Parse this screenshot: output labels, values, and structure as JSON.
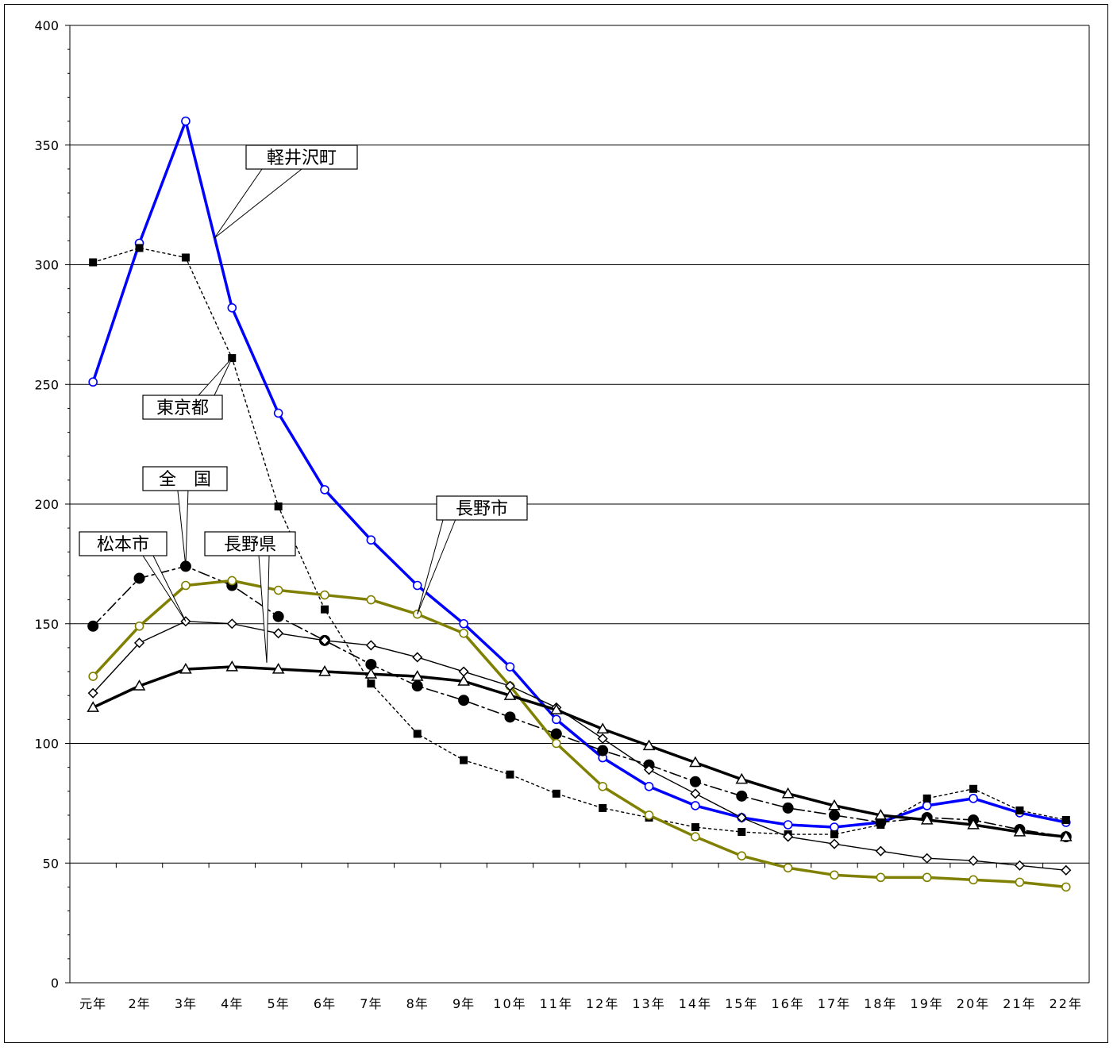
{
  "chart_data": {
    "type": "line",
    "title": "",
    "xlabel": "",
    "ylabel": "",
    "ylim": [
      0,
      400
    ],
    "y_ticks": [
      0,
      50,
      100,
      150,
      200,
      250,
      300,
      350,
      400
    ],
    "grid": true,
    "categories": [
      "元年",
      "2年",
      "3年",
      "4年",
      "5年",
      "6年",
      "7年",
      "8年",
      "9年",
      "10年",
      "11年",
      "12年",
      "13年",
      "14年",
      "15年",
      "16年",
      "17年",
      "18年",
      "19年",
      "20年",
      "21年",
      "22年"
    ],
    "series": [
      {
        "name": "軽井沢町",
        "color": "#0000ff",
        "line_style": "solid-thick",
        "marker": "open-circle",
        "values": [
          251,
          309,
          360,
          282,
          238,
          206,
          185,
          166,
          150,
          132,
          110,
          94,
          82,
          74,
          69,
          66,
          65,
          67,
          74,
          77,
          71,
          67
        ]
      },
      {
        "name": "東京都",
        "color": "#000000",
        "line_style": "dotted",
        "marker": "filled-square",
        "values": [
          301,
          307,
          303,
          261,
          199,
          156,
          125,
          104,
          93,
          87,
          79,
          73,
          69,
          65,
          63,
          62,
          62,
          66,
          77,
          81,
          72,
          68
        ]
      },
      {
        "name": "全　国",
        "color": "#000000",
        "line_style": "dash-dot",
        "marker": "filled-circle",
        "values": [
          149,
          169,
          174,
          166,
          153,
          143,
          133,
          124,
          118,
          111,
          104,
          97,
          91,
          84,
          78,
          73,
          70,
          67,
          69,
          68,
          64,
          61
        ]
      },
      {
        "name": "長野市",
        "color": "#808000",
        "line_style": "solid-thick",
        "marker": "open-circle",
        "values": [
          128,
          149,
          166,
          168,
          164,
          162,
          160,
          154,
          146,
          124,
          100,
          82,
          70,
          61,
          53,
          48,
          45,
          44,
          44,
          43,
          42,
          40
        ]
      },
      {
        "name": "松本市",
        "color": "#000000",
        "line_style": "solid",
        "marker": "open-diamond",
        "values": [
          121,
          142,
          151,
          150,
          146,
          143,
          141,
          136,
          130,
          124,
          115,
          102,
          89,
          79,
          69,
          61,
          58,
          55,
          52,
          51,
          49,
          47
        ]
      },
      {
        "name": "長野県",
        "color": "#000000",
        "line_style": "solid-thick",
        "marker": "open-triangle",
        "values": [
          115,
          124,
          131,
          132,
          131,
          130,
          129,
          128,
          126,
          120,
          114,
          106,
          99,
          92,
          85,
          79,
          74,
          70,
          68,
          66,
          63,
          61
        ]
      }
    ],
    "annotations": [
      {
        "text": "軽井沢町",
        "series": 0,
        "points": [
          3,
          4
        ]
      },
      {
        "text": "東京都",
        "series": 1,
        "points": [
          3,
          3
        ]
      },
      {
        "text": "全　国",
        "series": 2,
        "points": [
          2,
          2
        ]
      },
      {
        "text": "松本市",
        "series": 4,
        "points": [
          2,
          2
        ]
      },
      {
        "text": "長野県",
        "series": 5,
        "points": [
          4,
          4
        ]
      },
      {
        "text": "長野市",
        "series": 3,
        "points": [
          7,
          7
        ]
      }
    ]
  }
}
